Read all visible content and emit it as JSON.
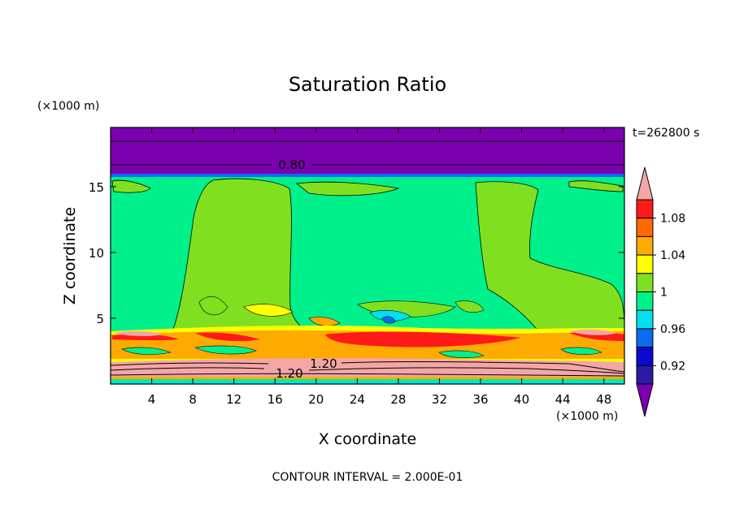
{
  "chart_data": {
    "type": "heatmap",
    "title": "Saturation Ratio",
    "xlabel": "X coordinate",
    "ylabel": "Z coordinate",
    "x_units": "(×1000 m)",
    "z_units": "(×1000 m)",
    "time_label": "t=262800 s",
    "footer": "CONTOUR INTERVAL = 2.000E-01",
    "xlim": [
      0,
      50
    ],
    "ylim": [
      0,
      19.5
    ],
    "x_ticks": [
      4,
      8,
      12,
      16,
      20,
      24,
      28,
      32,
      36,
      40,
      44,
      48
    ],
    "y_ticks": [
      5,
      10,
      15
    ],
    "colorbar": {
      "labels": [
        "0.92",
        "0.96",
        "1",
        "1.04",
        "1.08"
      ],
      "levels": [
        0.9,
        0.92,
        0.94,
        0.96,
        0.98,
        1.0,
        1.02,
        1.04,
        1.06,
        1.08,
        1.1
      ],
      "colors": [
        "#7a00b0",
        "#2a1aa6",
        "#0b0bd0",
        "#0a6cf0",
        "#00e0ee",
        "#00f08c",
        "#80e020",
        "#ffff00",
        "#ffaa00",
        "#ff6a00",
        "#ff1a1a",
        "#f4a6a6"
      ]
    },
    "contour_labels": [
      {
        "value": "0.80",
        "x": 16.5,
        "z": 16.9
      },
      {
        "value": "1.20",
        "x": 21.0,
        "z": 1.5
      },
      {
        "value": "1.20",
        "x": 17.5,
        "z": 0.8
      }
    ],
    "regions": [
      {
        "level": "<0.90",
        "color": "#7a00b0",
        "z_range": [
          16.1,
          19.5
        ],
        "x_range": [
          0,
          50
        ]
      },
      {
        "level": "0.98-1.00",
        "color": "#00f08c",
        "z_range": [
          4.2,
          16.1
        ],
        "x_range": [
          0,
          50
        ]
      },
      {
        "level": "1.00-1.02",
        "color": "#80e020",
        "z_range": [
          4.2,
          15.8
        ],
        "x_range": [
          6.5,
          16.5
        ]
      },
      {
        "level": "1.00-1.02",
        "color": "#80e020",
        "z_range": [
          4.2,
          15.8
        ],
        "x_range": [
          35.5,
          42.5
        ]
      },
      {
        "level": "1.04-1.08",
        "color": "#ffaa00",
        "z_range": [
          1.8,
          4.0
        ],
        "x_range": [
          0,
          50
        ]
      },
      {
        "level": ">1.10",
        "color": "#f4a6a6",
        "z_range": [
          0.3,
          1.9
        ],
        "x_range": [
          0,
          50
        ]
      }
    ]
  }
}
